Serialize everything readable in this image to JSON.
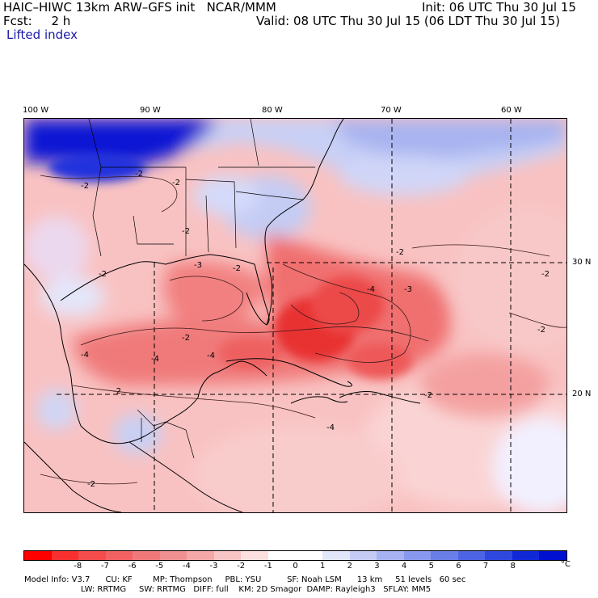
{
  "header": {
    "title": "HAIC–HIWC 13km ARW–GFS init   NCAR/MMM",
    "fcst": "Fcst:     2 h",
    "init": "Init: 06 UTC Thu 30 Jul 15",
    "valid": "Valid: 08 UTC Thu 30 Jul 15 (06 LDT Thu 30 Jul 15)",
    "field": "Lifted index"
  },
  "map": {
    "lon_labels": [
      "100 W",
      "90 W",
      "80 W",
      "70 W",
      "60 W"
    ],
    "lat_labels": [
      "30 N",
      "20 N"
    ],
    "contour_labels": [
      "-2",
      "-2",
      "-2",
      "-2",
      "-2",
      "-3",
      "-2",
      "-4",
      "-3",
      "-2",
      "-4",
      "-4",
      "-2",
      "-4",
      "-2",
      "-2",
      "-2",
      "-2",
      "-4",
      "-2"
    ],
    "colors": {
      "strong_blue": "#0a10d8",
      "light_blue": "#b8c4f4",
      "light_red": "#f8b0b0",
      "mid_red": "#f06a6a",
      "strong_red": "#e82828"
    }
  },
  "colorbar": {
    "colors": [
      "#ff0000",
      "#f8302f",
      "#f44c4c",
      "#f26262",
      "#f07878",
      "#f09090",
      "#f4a8a8",
      "#f8c4c4",
      "#fce0e0",
      "#ffffff",
      "#ffffff",
      "#e2e6fb",
      "#c4ccf6",
      "#a6b2f2",
      "#8898ee",
      "#6a7ee8",
      "#4c64e4",
      "#2e48de",
      "#1028d8",
      "#0010d0"
    ],
    "labels": [
      "-8",
      "-7",
      "-6",
      "-5",
      "-4",
      "-3",
      "-2",
      "-1",
      "0",
      "1",
      "2",
      "3",
      "4",
      "5",
      "6",
      "7",
      "8"
    ],
    "unit": "°C"
  },
  "model_info": {
    "line1": "Model Info: V3.7      CU: KF        MP: Thompson     PBL: YSU          SF: Noah LSM      13 km     51 levels   60 sec",
    "line2": "                      LW: RRTMG     SW: RRTMG   DIFF: full    KM: 2D Smagor  DAMP: Rayleigh3   SFLAY: MM5"
  }
}
